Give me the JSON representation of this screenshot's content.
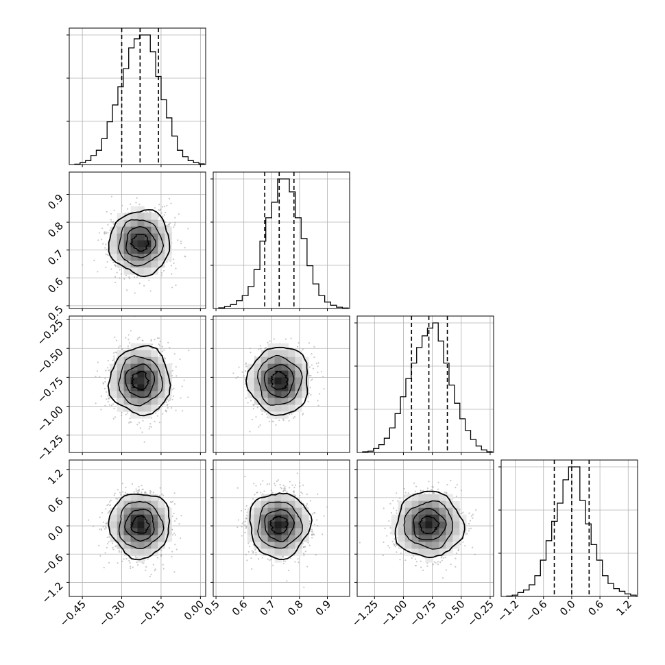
{
  "chart_data": {
    "type": "corner",
    "n_params": 4,
    "grid": true,
    "colors": {
      "line": "#000000",
      "grid": "#b0b0b0",
      "scatter": "#9a9a9a"
    },
    "params": [
      {
        "index": 0,
        "range": [
          -0.5,
          0.02
        ],
        "ticks": [
          -0.45,
          -0.3,
          -0.15,
          0.0
        ],
        "tick_labels": [
          "−0.45",
          "−0.30",
          "−0.15",
          "0.00"
        ],
        "quantiles": [
          -0.3,
          -0.23,
          -0.16
        ],
        "hist": [
          0.3,
          1.5,
          3,
          7,
          11,
          20,
          33,
          46,
          60,
          74,
          90,
          97,
          100,
          100,
          87,
          68,
          50,
          36,
          22,
          11,
          6,
          3,
          1.5,
          0.5
        ]
      },
      {
        "index": 1,
        "range": [
          0.49,
          0.98
        ],
        "ticks": [
          0.5,
          0.6,
          0.7,
          0.8,
          0.9
        ],
        "tick_labels": [
          "0.5",
          "0.6",
          "0.7",
          "0.8",
          "0.9"
        ],
        "quantiles": [
          0.675,
          0.727,
          0.78
        ],
        "hist": [
          0.5,
          1.5,
          3,
          6,
          10,
          17,
          30,
          52,
          70,
          82,
          100,
          100,
          90,
          70,
          54,
          33,
          19,
          10,
          5,
          2.5,
          1,
          0.4
        ]
      },
      {
        "index": 2,
        "range": [
          -1.4,
          -0.22
        ],
        "ticks": [
          -1.25,
          -1.0,
          -0.75,
          -0.5,
          -0.25
        ],
        "tick_labels": [
          "−1.25",
          "−1.00",
          "−0.75",
          "−0.50",
          "−0.25"
        ],
        "quantiles": [
          -0.93,
          -0.78,
          -0.62
        ],
        "hist": [
          0.5,
          1,
          3,
          6,
          11,
          19,
          30,
          43,
          57,
          69,
          81,
          90,
          96,
          100,
          86,
          69,
          52,
          38,
          26,
          17,
          10,
          5,
          2,
          0.5
        ]
      },
      {
        "index": 3,
        "range": [
          -1.5,
          1.4
        ],
        "ticks": [
          -1.2,
          -0.6,
          0.0,
          0.6,
          1.2
        ],
        "tick_labels": [
          "−1.2",
          "−0.6",
          "0.0",
          "0.6",
          "1.2"
        ],
        "quantiles": [
          -0.37,
          0.0,
          0.37
        ],
        "hist": [
          0.3,
          1,
          3,
          5,
          9,
          16,
          28,
          43,
          58,
          72,
          90,
          100,
          100,
          74,
          56,
          40,
          28,
          16,
          10,
          6,
          4,
          2,
          1
        ]
      }
    ],
    "tick_labels_on_axes": {
      "left": [
        1,
        2,
        3
      ],
      "bottom": [
        0,
        1,
        2,
        3
      ]
    },
    "pairs": [
      {
        "x": 0,
        "y": 1,
        "mean": [
          -0.23,
          0.727
        ],
        "sigma": [
          0.055,
          0.055
        ],
        "contour_scales": [
          0.55,
          1.0,
          1.5,
          2.1
        ],
        "scatter_points": 1400
      },
      {
        "x": 0,
        "y": 2,
        "mean": [
          -0.23,
          -0.78
        ],
        "sigma": [
          0.055,
          0.14
        ],
        "contour_scales": [
          0.55,
          1.0,
          1.5,
          2.1
        ],
        "scatter_points": 1400
      },
      {
        "x": 1,
        "y": 2,
        "mean": [
          0.727,
          -0.78
        ],
        "sigma": [
          0.052,
          0.14
        ],
        "contour_scales": [
          0.55,
          1.0,
          1.5,
          2.1
        ],
        "scatter_points": 1400
      },
      {
        "x": 0,
        "y": 3,
        "mean": [
          -0.23,
          0.02
        ],
        "sigma": [
          0.055,
          0.33
        ],
        "contour_scales": [
          0.55,
          1.0,
          1.5,
          2.1
        ],
        "scatter_points": 1400
      },
      {
        "x": 1,
        "y": 3,
        "mean": [
          0.727,
          0.02
        ],
        "sigma": [
          0.052,
          0.33
        ],
        "contour_scales": [
          0.55,
          1.0,
          1.5,
          2.1
        ],
        "scatter_points": 1400
      },
      {
        "x": 2,
        "y": 3,
        "mean": [
          -0.78,
          0.02
        ],
        "sigma": [
          0.14,
          0.33
        ],
        "contour_scales": [
          0.55,
          1.0,
          1.5,
          2.1
        ],
        "scatter_points": 1400
      }
    ]
  }
}
